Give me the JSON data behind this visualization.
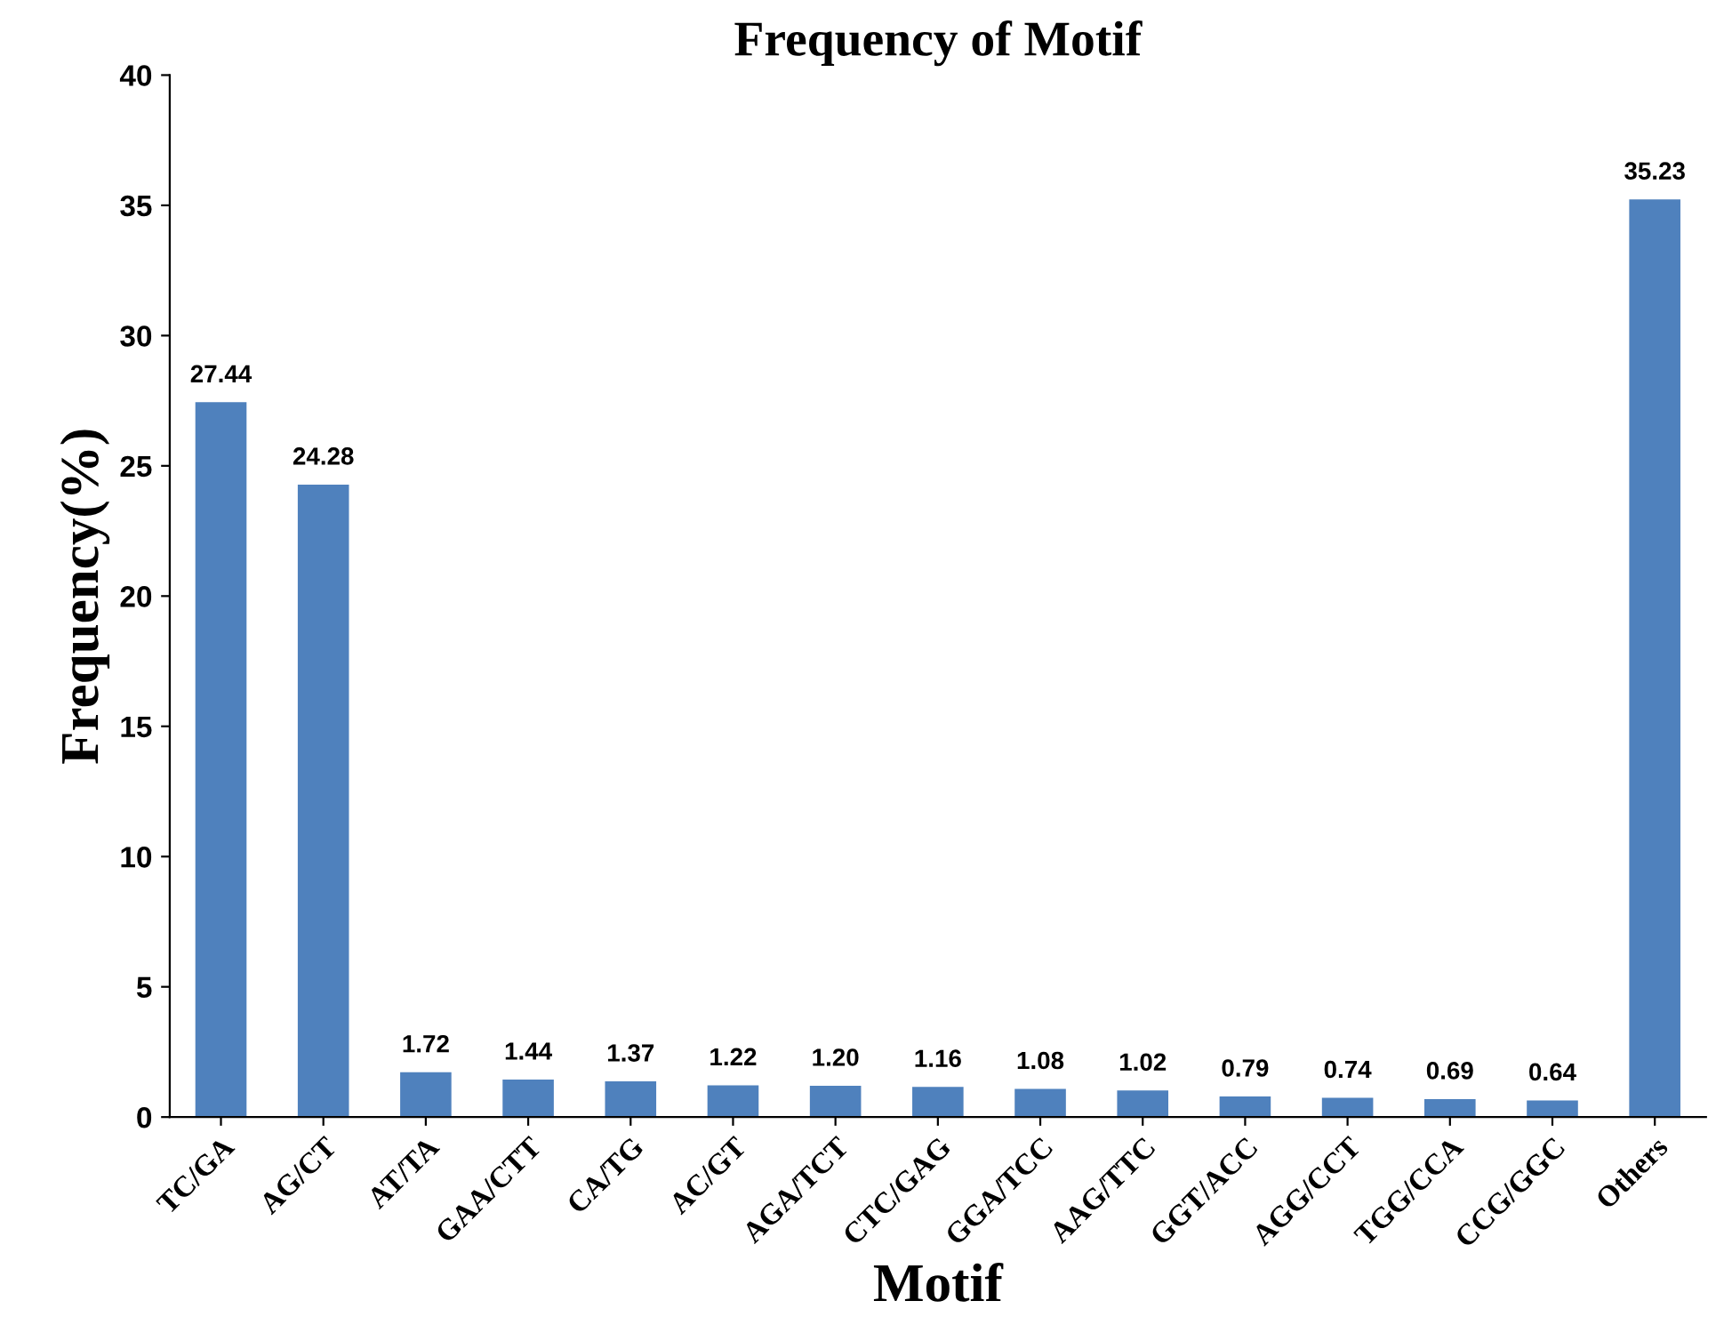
{
  "chart_data": {
    "type": "bar",
    "title": "Frequency of Motif",
    "xlabel": "Motif",
    "ylabel": "Frequency(%)",
    "categories": [
      "TC/GA",
      "AG/CT",
      "AT/TA",
      "GAA/CTT",
      "CA/TG",
      "AC/GT",
      "AGA/TCT",
      "CTC/GAG",
      "GGA/TCC",
      "AAG/TTC",
      "GGT/ACC",
      "AGG/CCT",
      "TGG/CCA",
      "CCG/GGC",
      "Others"
    ],
    "values": [
      27.44,
      24.28,
      1.72,
      1.44,
      1.37,
      1.22,
      1.2,
      1.16,
      1.08,
      1.02,
      0.79,
      0.74,
      0.69,
      0.64,
      35.23
    ],
    "value_labels": [
      "27.44",
      "24.28",
      "1.72",
      "1.44",
      "1.37",
      "1.22",
      "1.20",
      "1.16",
      "1.08",
      "1.02",
      "0.79",
      "0.74",
      "0.69",
      "0.64",
      "35.23"
    ],
    "color": "#4f81bd",
    "ylim": [
      0,
      40
    ],
    "yticks": [
      0,
      5,
      10,
      15,
      20,
      25,
      30,
      35,
      40
    ],
    "grid": false,
    "legend": false
  }
}
